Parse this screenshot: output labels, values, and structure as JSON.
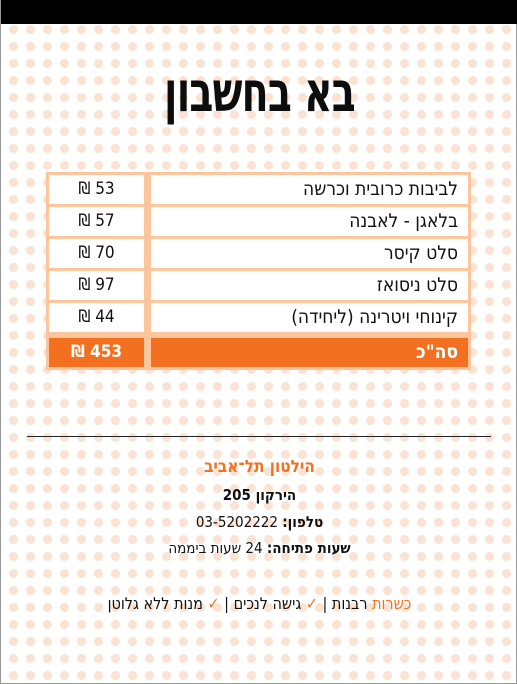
{
  "header": {
    "title": "בא בחשבון"
  },
  "bill": {
    "items": [
      {
        "name": "לביבות כרובית וכרשה",
        "price": "53 ₪"
      },
      {
        "name": "בלאגן - לאבנה",
        "price": "57 ₪"
      },
      {
        "name": "סלט קיסר",
        "price": "70 ₪"
      },
      {
        "name": "סלט ניסואז",
        "price": "97 ₪"
      },
      {
        "name": "קינוחי ויטרינה (ליחידה)",
        "price": "44 ₪"
      }
    ],
    "total": {
      "label": "סה\"כ",
      "price": "453 ₪"
    }
  },
  "restaurant": {
    "name": "הילטון תל־אביב",
    "address": "הירקון 205",
    "phone_label": "טלפון:",
    "phone": "03-5202222",
    "hours_label": "שעות פתיחה:",
    "hours": "24 שעות ביממה"
  },
  "features": {
    "kosher_label": "כשרות",
    "kosher": "רבנות",
    "separator": "|",
    "accessibility": "גישה לנכים",
    "gluten_free": "מנות ללא גלוטן",
    "check_mark": "✓"
  },
  "colors": {
    "accent": "#f37021",
    "table_border": "#fcc59c",
    "dots": "#fbe3d4",
    "topbar": "#000000"
  }
}
